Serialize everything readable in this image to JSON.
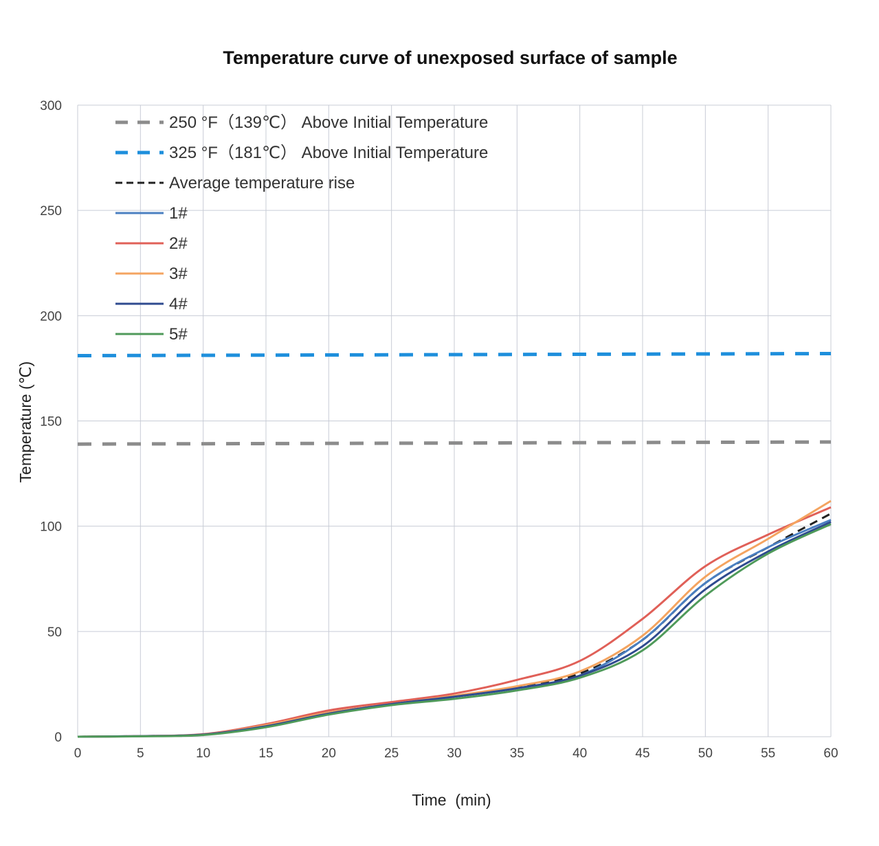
{
  "chart_data": {
    "type": "line",
    "title": "Temperature curve of unexposed surface of sample",
    "xlabel": "Time  (min)",
    "ylabel": "Temperature (℃)",
    "xlim": [
      0,
      60
    ],
    "ylim": [
      0,
      300
    ],
    "x_ticks": [
      "0",
      "5",
      "10",
      "15",
      "20",
      "25",
      "30",
      "35",
      "40",
      "45",
      "50",
      "55",
      "60"
    ],
    "y_ticks": [
      "0",
      "50",
      "100",
      "150",
      "200",
      "250",
      "300"
    ],
    "grid": true,
    "legend_position": "top-left",
    "x": [
      0,
      5,
      10,
      15,
      20,
      25,
      30,
      35,
      40,
      45,
      50,
      55,
      60
    ],
    "series": [
      {
        "name": "250 °F（139℃） Above Initial Temperature",
        "color": "#8c8c8c",
        "dash": "long-dash",
        "values": [
          139,
          139.1,
          139.2,
          139.3,
          139.4,
          139.5,
          139.6,
          139.7,
          139.8,
          139.9,
          140,
          140,
          140
        ]
      },
      {
        "name": "325 °F（181℃） Above Initial Temperature",
        "color": "#1e8fdc",
        "dash": "long-dash",
        "values": [
          181,
          181.1,
          181.2,
          181.3,
          181.4,
          181.5,
          181.6,
          181.7,
          181.8,
          181.9,
          182,
          182,
          182
        ]
      },
      {
        "name": "Average temperature rise",
        "color": "#222222",
        "dash": "dash",
        "values": [
          0,
          0.3,
          1,
          5.5,
          11.5,
          15.5,
          19,
          23.5,
          30,
          46,
          73,
          90,
          106
        ]
      },
      {
        "name": "1#",
        "color": "#4a7fc1",
        "dash": "solid",
        "values": [
          0,
          0.3,
          1,
          5.5,
          11.5,
          15.5,
          19,
          23,
          29,
          46,
          73,
          90,
          103
        ]
      },
      {
        "name": "2#",
        "color": "#e06058",
        "dash": "solid",
        "values": [
          0,
          0.3,
          1.2,
          6,
          12.5,
          16.5,
          20.5,
          27,
          36,
          56,
          81,
          96,
          109
        ]
      },
      {
        "name": "3#",
        "color": "#f4a460",
        "dash": "solid",
        "values": [
          0,
          0.3,
          1,
          5.5,
          11.5,
          15.5,
          19.5,
          24,
          31,
          48,
          76,
          94,
          112
        ]
      },
      {
        "name": "4#",
        "color": "#2f4b8f",
        "dash": "solid",
        "values": [
          0,
          0.3,
          1,
          5,
          11,
          15.5,
          19,
          23,
          29,
          43,
          70,
          88,
          102
        ]
      },
      {
        "name": "5#",
        "color": "#4f9a5a",
        "dash": "solid",
        "values": [
          0,
          0.2,
          0.8,
          4.5,
          10.5,
          15,
          18,
          22,
          28,
          41,
          67,
          87,
          101
        ]
      }
    ]
  }
}
